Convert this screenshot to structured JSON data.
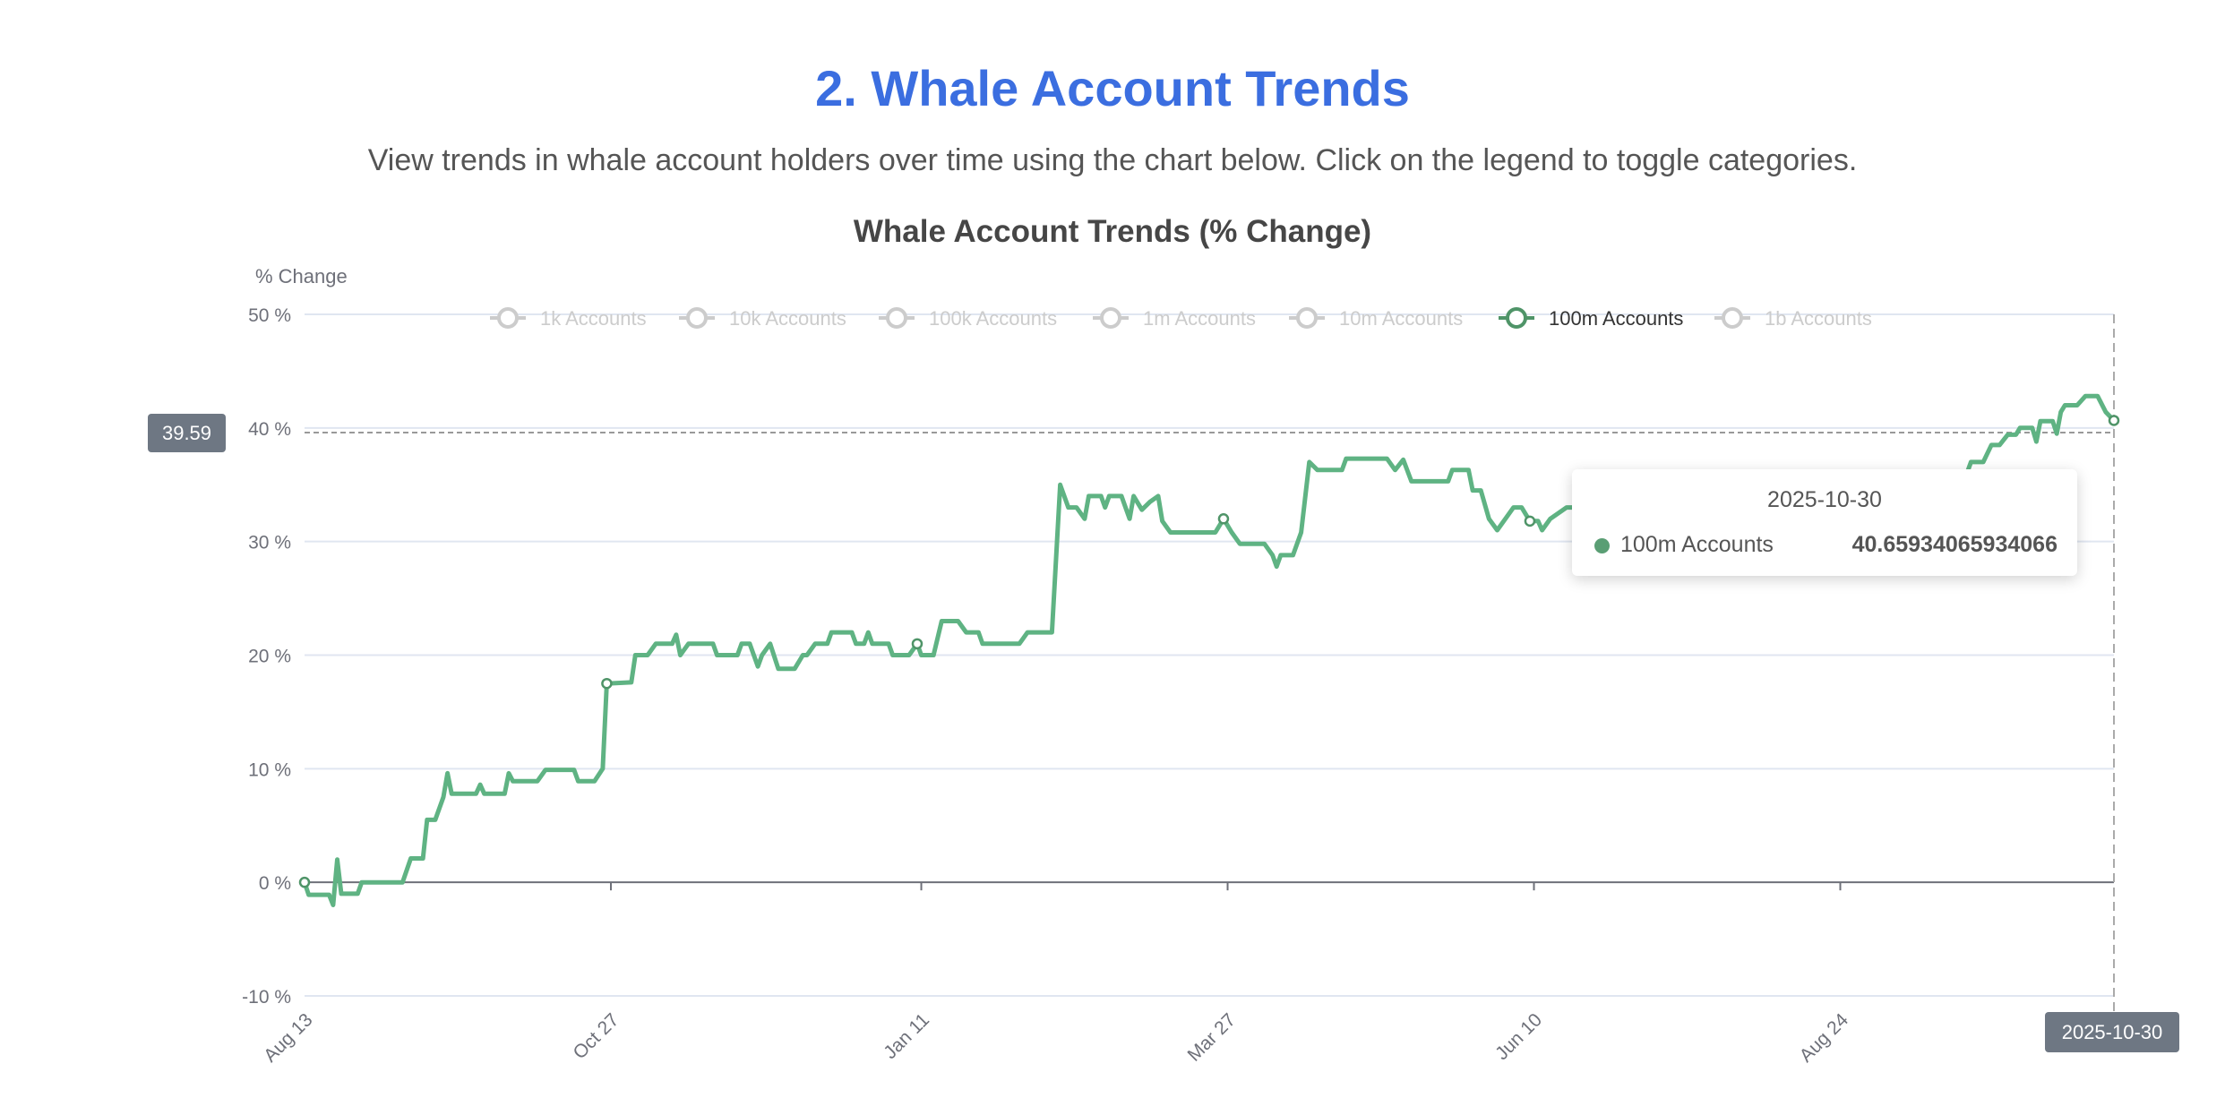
{
  "section": {
    "title": "2. Whale Account Trends",
    "description": "View trends in whale account holders over time using the chart below. Click on the legend to toggle categories."
  },
  "colors": {
    "title": "#3b6ee0",
    "series_active": "#5fb383",
    "legend_inactive": "#cccccc",
    "axis_pointer": "#6e7783"
  },
  "chart_data": {
    "type": "line",
    "title": "Whale Account Trends (% Change)",
    "ylabel": "% Change",
    "ylim": [
      -10,
      50
    ],
    "yticks": [
      "50 %",
      "40 %",
      "30 %",
      "20 %",
      "10 %",
      "0 %",
      "-10 %"
    ],
    "ytick_values": [
      50,
      40,
      30,
      20,
      10,
      0,
      -10
    ],
    "xlim": [
      "2024-08-13",
      "2025-10-30"
    ],
    "xticks": [
      {
        "label": "Aug 13",
        "date": "2024-08-13"
      },
      {
        "label": "Oct 27",
        "date": "2024-10-27"
      },
      {
        "label": "Jan 11",
        "date": "2025-01-11"
      },
      {
        "label": "Mar 27",
        "date": "2025-03-27"
      },
      {
        "label": "Jun 10",
        "date": "2025-06-10"
      },
      {
        "label": "Aug 24",
        "date": "2025-08-24"
      }
    ],
    "grid": true,
    "legend": {
      "position": "top",
      "items": [
        {
          "name": "1k Accounts",
          "active": false
        },
        {
          "name": "10k Accounts",
          "active": false
        },
        {
          "name": "100k Accounts",
          "active": false
        },
        {
          "name": "1m Accounts",
          "active": false
        },
        {
          "name": "10m Accounts",
          "active": false
        },
        {
          "name": "100m Accounts",
          "active": true
        },
        {
          "name": "1b Accounts",
          "active": false
        }
      ]
    },
    "series": [
      {
        "name": "100m Accounts",
        "symbol_dates": [
          "2024-08-13",
          "2024-10-26",
          "2025-01-10",
          "2025-03-26",
          "2025-06-09",
          "2025-10-30"
        ],
        "points": [
          [
            "2024-08-13",
            0
          ],
          [
            "2024-08-14",
            -1.1
          ],
          [
            "2024-08-19",
            -1.1
          ],
          [
            "2024-08-20",
            -2
          ],
          [
            "2024-08-21",
            2
          ],
          [
            "2024-08-22",
            -1
          ],
          [
            "2024-08-26",
            -1
          ],
          [
            "2024-08-27",
            0
          ],
          [
            "2024-09-06",
            0
          ],
          [
            "2024-09-08",
            2.1
          ],
          [
            "2024-09-11",
            2.1
          ],
          [
            "2024-09-12",
            5.5
          ],
          [
            "2024-09-14",
            5.5
          ],
          [
            "2024-09-16",
            7.5
          ],
          [
            "2024-09-17",
            9.6
          ],
          [
            "2024-09-18",
            7.8
          ],
          [
            "2024-09-24",
            7.8
          ],
          [
            "2024-09-25",
            8.6
          ],
          [
            "2024-09-26",
            7.8
          ],
          [
            "2024-10-01",
            7.8
          ],
          [
            "2024-10-02",
            9.6
          ],
          [
            "2024-10-03",
            8.9
          ],
          [
            "2024-10-09",
            8.9
          ],
          [
            "2024-10-11",
            9.9
          ],
          [
            "2024-10-18",
            9.9
          ],
          [
            "2024-10-19",
            8.9
          ],
          [
            "2024-10-23",
            8.9
          ],
          [
            "2024-10-25",
            10
          ],
          [
            "2024-10-26",
            17.5
          ],
          [
            "2024-11-01",
            17.6
          ],
          [
            "2024-11-02",
            20
          ],
          [
            "2024-11-05",
            20
          ],
          [
            "2024-11-07",
            21
          ],
          [
            "2024-11-11",
            21
          ],
          [
            "2024-11-12",
            21.8
          ],
          [
            "2024-11-13",
            20
          ],
          [
            "2024-11-15",
            21
          ],
          [
            "2024-11-21",
            21
          ],
          [
            "2024-11-22",
            20
          ],
          [
            "2024-11-27",
            20
          ],
          [
            "2024-11-28",
            21
          ],
          [
            "2024-11-30",
            21
          ],
          [
            "2024-12-02",
            19
          ],
          [
            "2024-12-03",
            20
          ],
          [
            "2024-12-05",
            21
          ],
          [
            "2024-12-07",
            18.8
          ],
          [
            "2024-12-11",
            18.8
          ],
          [
            "2024-12-13",
            20
          ],
          [
            "2024-12-14",
            20
          ],
          [
            "2024-12-16",
            21
          ],
          [
            "2024-12-19",
            21
          ],
          [
            "2024-12-20",
            22
          ],
          [
            "2024-12-25",
            22
          ],
          [
            "2024-12-26",
            21
          ],
          [
            "2024-12-28",
            21
          ],
          [
            "2024-12-29",
            22
          ],
          [
            "2024-12-30",
            21
          ],
          [
            "2025-01-03",
            21
          ],
          [
            "2025-01-04",
            20
          ],
          [
            "2025-01-08",
            20
          ],
          [
            "2025-01-10",
            21
          ],
          [
            "2025-01-11",
            20
          ],
          [
            "2025-01-14",
            20
          ],
          [
            "2025-01-16",
            23
          ],
          [
            "2025-01-20",
            23
          ],
          [
            "2025-01-22",
            22
          ],
          [
            "2025-01-25",
            22
          ],
          [
            "2025-01-26",
            21
          ],
          [
            "2025-02-04",
            21
          ],
          [
            "2025-02-06",
            22
          ],
          [
            "2025-02-12",
            22
          ],
          [
            "2025-02-14",
            35
          ],
          [
            "2025-02-16",
            33
          ],
          [
            "2025-02-18",
            33
          ],
          [
            "2025-02-20",
            32
          ],
          [
            "2025-02-21",
            34
          ],
          [
            "2025-02-24",
            34
          ],
          [
            "2025-02-25",
            33
          ],
          [
            "2025-02-26",
            34
          ],
          [
            "2025-03-01",
            34
          ],
          [
            "2025-03-03",
            32
          ],
          [
            "2025-03-04",
            34
          ],
          [
            "2025-03-06",
            32.8
          ],
          [
            "2025-03-08",
            33.5
          ],
          [
            "2025-03-10",
            34
          ],
          [
            "2025-03-11",
            31.8
          ],
          [
            "2025-03-13",
            30.8
          ],
          [
            "2025-03-24",
            30.8
          ],
          [
            "2025-03-26",
            32
          ],
          [
            "2025-03-28",
            30.8
          ],
          [
            "2025-03-30",
            29.8
          ],
          [
            "2025-04-05",
            29.8
          ],
          [
            "2025-04-07",
            28.8
          ],
          [
            "2025-04-08",
            27.8
          ],
          [
            "2025-04-09",
            28.8
          ],
          [
            "2025-04-12",
            28.8
          ],
          [
            "2025-04-14",
            30.8
          ],
          [
            "2025-04-16",
            37
          ],
          [
            "2025-04-18",
            36.3
          ],
          [
            "2025-04-24",
            36.3
          ],
          [
            "2025-04-25",
            37.3
          ],
          [
            "2025-05-05",
            37.3
          ],
          [
            "2025-05-07",
            36.3
          ],
          [
            "2025-05-09",
            37.2
          ],
          [
            "2025-05-11",
            35.3
          ],
          [
            "2025-05-20",
            35.3
          ],
          [
            "2025-05-21",
            36.3
          ],
          [
            "2025-05-25",
            36.3
          ],
          [
            "2025-05-26",
            34.5
          ],
          [
            "2025-05-28",
            34.5
          ],
          [
            "2025-05-30",
            32
          ],
          [
            "2025-06-01",
            31
          ],
          [
            "2025-06-03",
            32
          ],
          [
            "2025-06-05",
            33
          ],
          [
            "2025-06-07",
            33
          ],
          [
            "2025-06-09",
            31.8
          ],
          [
            "2025-06-11",
            31.8
          ],
          [
            "2025-06-12",
            31
          ],
          [
            "2025-06-14",
            32
          ],
          [
            "2025-06-18",
            33
          ],
          [
            "2025-06-30",
            33
          ],
          [
            "2025-07-02",
            34
          ],
          [
            "2025-07-20",
            34
          ],
          [
            "2025-07-22",
            33
          ],
          [
            "2025-08-05",
            33
          ],
          [
            "2025-08-07",
            35
          ],
          [
            "2025-08-25",
            35
          ],
          [
            "2025-08-27",
            34
          ],
          [
            "2025-09-10",
            34
          ],
          [
            "2025-09-12",
            36
          ],
          [
            "2025-09-24",
            36
          ],
          [
            "2025-09-25",
            37
          ],
          [
            "2025-09-28",
            37
          ],
          [
            "2025-09-30",
            38.5
          ],
          [
            "2025-10-02",
            38.5
          ],
          [
            "2025-10-04",
            39.4
          ],
          [
            "2025-10-06",
            39.4
          ],
          [
            "2025-10-07",
            40
          ],
          [
            "2025-10-10",
            40
          ],
          [
            "2025-10-11",
            38.8
          ],
          [
            "2025-10-12",
            40.6
          ],
          [
            "2025-10-15",
            40.6
          ],
          [
            "2025-10-16",
            39.5
          ],
          [
            "2025-10-17",
            41.4
          ],
          [
            "2025-10-18",
            42
          ],
          [
            "2025-10-21",
            42
          ],
          [
            "2025-10-23",
            42.8
          ],
          [
            "2025-10-26",
            42.8
          ],
          [
            "2025-10-28",
            41.4
          ],
          [
            "2025-10-30",
            40.65934065934066
          ]
        ]
      }
    ],
    "tooltip": {
      "date": "2025-10-30",
      "series": "100m Accounts",
      "value": "40.65934065934066"
    },
    "axis_pointer": {
      "y_label": "39.59",
      "y_value": 39.59,
      "x_label": "2025-10-30"
    }
  }
}
